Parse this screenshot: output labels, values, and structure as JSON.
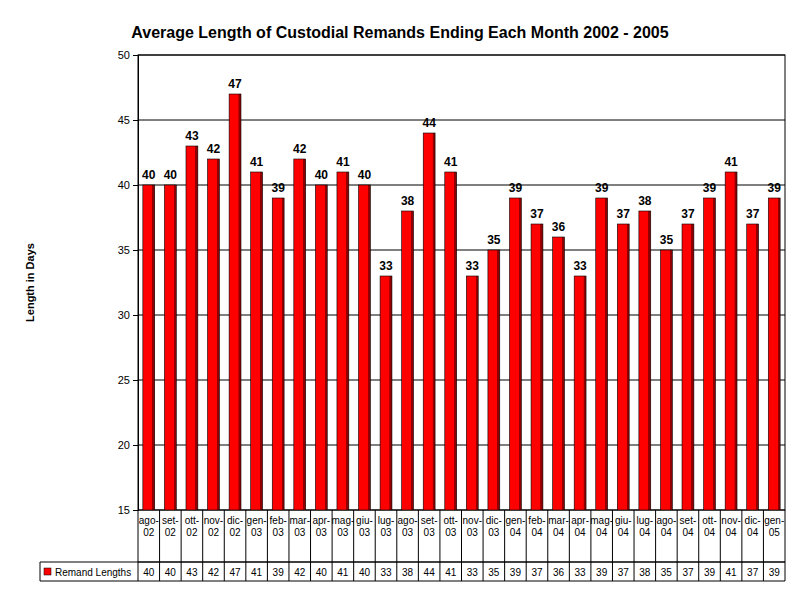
{
  "chart_data": {
    "type": "bar",
    "title": "Average Length of Custodial Remands Ending Each Month 2002 - 2005",
    "y_label": "Length in Days",
    "categories": [
      "ago-02",
      "set-02",
      "ott-02",
      "nov-02",
      "dic-02",
      "gen-03",
      "feb-03",
      "mar-03",
      "apr-03",
      "mag-03",
      "giu-03",
      "lug-03",
      "ago-03",
      "set-03",
      "ott-03",
      "nov-03",
      "dic-03",
      "gen-04",
      "feb-04",
      "mar-04",
      "apr-04",
      "mag-04",
      "giu-04",
      "lug-04",
      "ago-04",
      "set-04",
      "ott-04",
      "nov-04",
      "dic-04",
      "gen-05"
    ],
    "series": [
      {
        "name": "Remand Lengths",
        "color": "#ff0000",
        "values": [
          40,
          40,
          43,
          42,
          47,
          41,
          39,
          42,
          40,
          41,
          40,
          33,
          38,
          44,
          41,
          33,
          35,
          39,
          37,
          36,
          33,
          39,
          37,
          38,
          35,
          37,
          39,
          41,
          37,
          39
        ]
      }
    ],
    "ylim": [
      15,
      50
    ],
    "yticks": [
      15,
      20,
      25,
      30,
      35,
      40,
      45,
      50
    ],
    "grid": true,
    "data_labels": true
  }
}
